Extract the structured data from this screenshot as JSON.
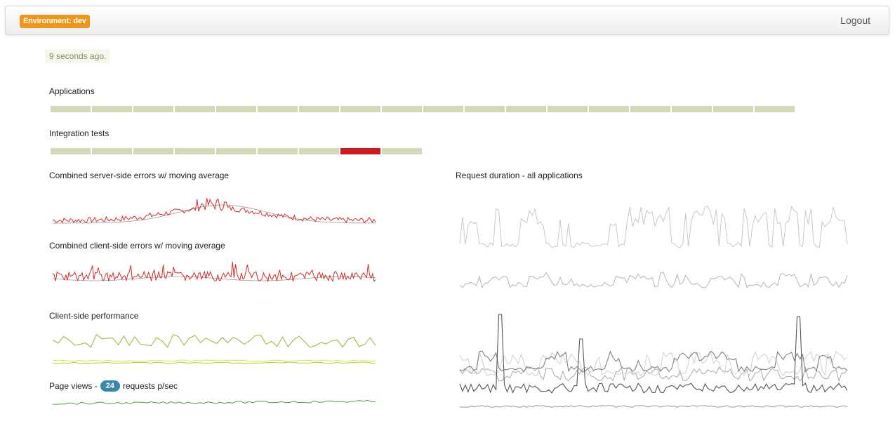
{
  "header": {
    "environment_label": "Environment: dev",
    "logout_label": "Logout"
  },
  "timestamp": "9 seconds ago.",
  "applications": {
    "label": "Applications",
    "statuses": [
      "ok",
      "ok",
      "ok",
      "ok",
      "ok",
      "ok",
      "ok",
      "ok",
      "ok",
      "ok",
      "ok",
      "ok",
      "ok",
      "ok",
      "ok",
      "ok",
      "ok",
      "ok"
    ]
  },
  "integration_tests": {
    "label": "Integration tests",
    "statuses": [
      "ok",
      "ok",
      "ok",
      "ok",
      "ok",
      "ok",
      "ok",
      "fail",
      "ok"
    ]
  },
  "charts": {
    "server_errors": {
      "title": "Combined server-side errors w/ moving average"
    },
    "client_errors": {
      "title": "Combined client-side errors w/ moving average"
    },
    "client_performance": {
      "title": "Client-side performance"
    },
    "page_views": {
      "prefix": "Page views - ",
      "value": "24",
      "suffix": " requests p/sec"
    },
    "request_duration": {
      "title": "Request duration - all applications"
    }
  },
  "colors": {
    "ok": "#d2d9b6",
    "fail": "#d0191f",
    "error_line": "#d62a2a",
    "avg_line": "#999999",
    "perf_line": "#9fb033",
    "perf_low": "#d7e83c",
    "pageview_line": "#4aa63a",
    "duration_light": "#c8c8c8",
    "duration_dark": "#555555",
    "badge_env": "#f0961a",
    "badge_info": "#3a87ad"
  }
}
